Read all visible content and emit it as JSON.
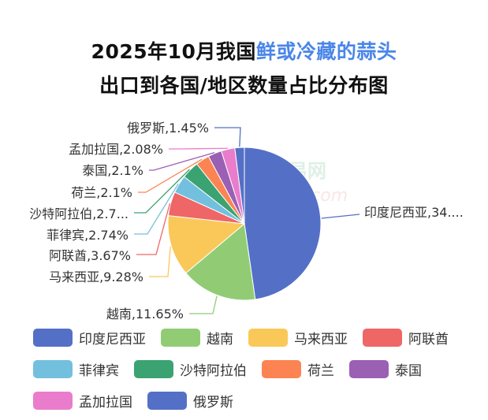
{
  "chart_data": {
    "type": "pie",
    "title_part1": "2025年10月我国",
    "title_highlight": "鲜或冷藏的蒜头",
    "title_line2": "出口到各国/地区数量占比分布图",
    "title_highlight_color": "#4a86e8",
    "unit": "%",
    "legend_position": "bottom",
    "watermark": "国际大蒜贸易网 www.51garlic.com",
    "slices": [
      {
        "name": "印度尼西亚",
        "value": 34.5,
        "label": "印度尼西亚,34....",
        "color": "#5470c6"
      },
      {
        "name": "越南",
        "value": 11.65,
        "label": "越南,11.65%",
        "color": "#91cc75"
      },
      {
        "name": "马来西亚",
        "value": 9.28,
        "label": "马来西亚,9.28%",
        "color": "#fac858"
      },
      {
        "name": "阿联酋",
        "value": 3.67,
        "label": "阿联酋,3.67%",
        "color": "#ee6666"
      },
      {
        "name": "菲律宾",
        "value": 2.74,
        "label": "菲律宾,2.74%",
        "color": "#73c0de"
      },
      {
        "name": "沙特阿拉伯",
        "value": 2.7,
        "label": "沙特阿拉伯,2.7...",
        "color": "#3ba272"
      },
      {
        "name": "荷兰",
        "value": 2.1,
        "label": "荷兰,2.1%",
        "color": "#fc8452"
      },
      {
        "name": "泰国",
        "value": 2.1,
        "label": "泰国,2.1%",
        "color": "#9a60b4"
      },
      {
        "name": "孟加拉国",
        "value": 2.08,
        "label": "孟加拉国,2.08%",
        "color": "#ea7ccc"
      },
      {
        "name": "俄罗斯",
        "value": 1.45,
        "label": "俄罗斯,1.45%",
        "color": "#5470c6"
      }
    ]
  }
}
